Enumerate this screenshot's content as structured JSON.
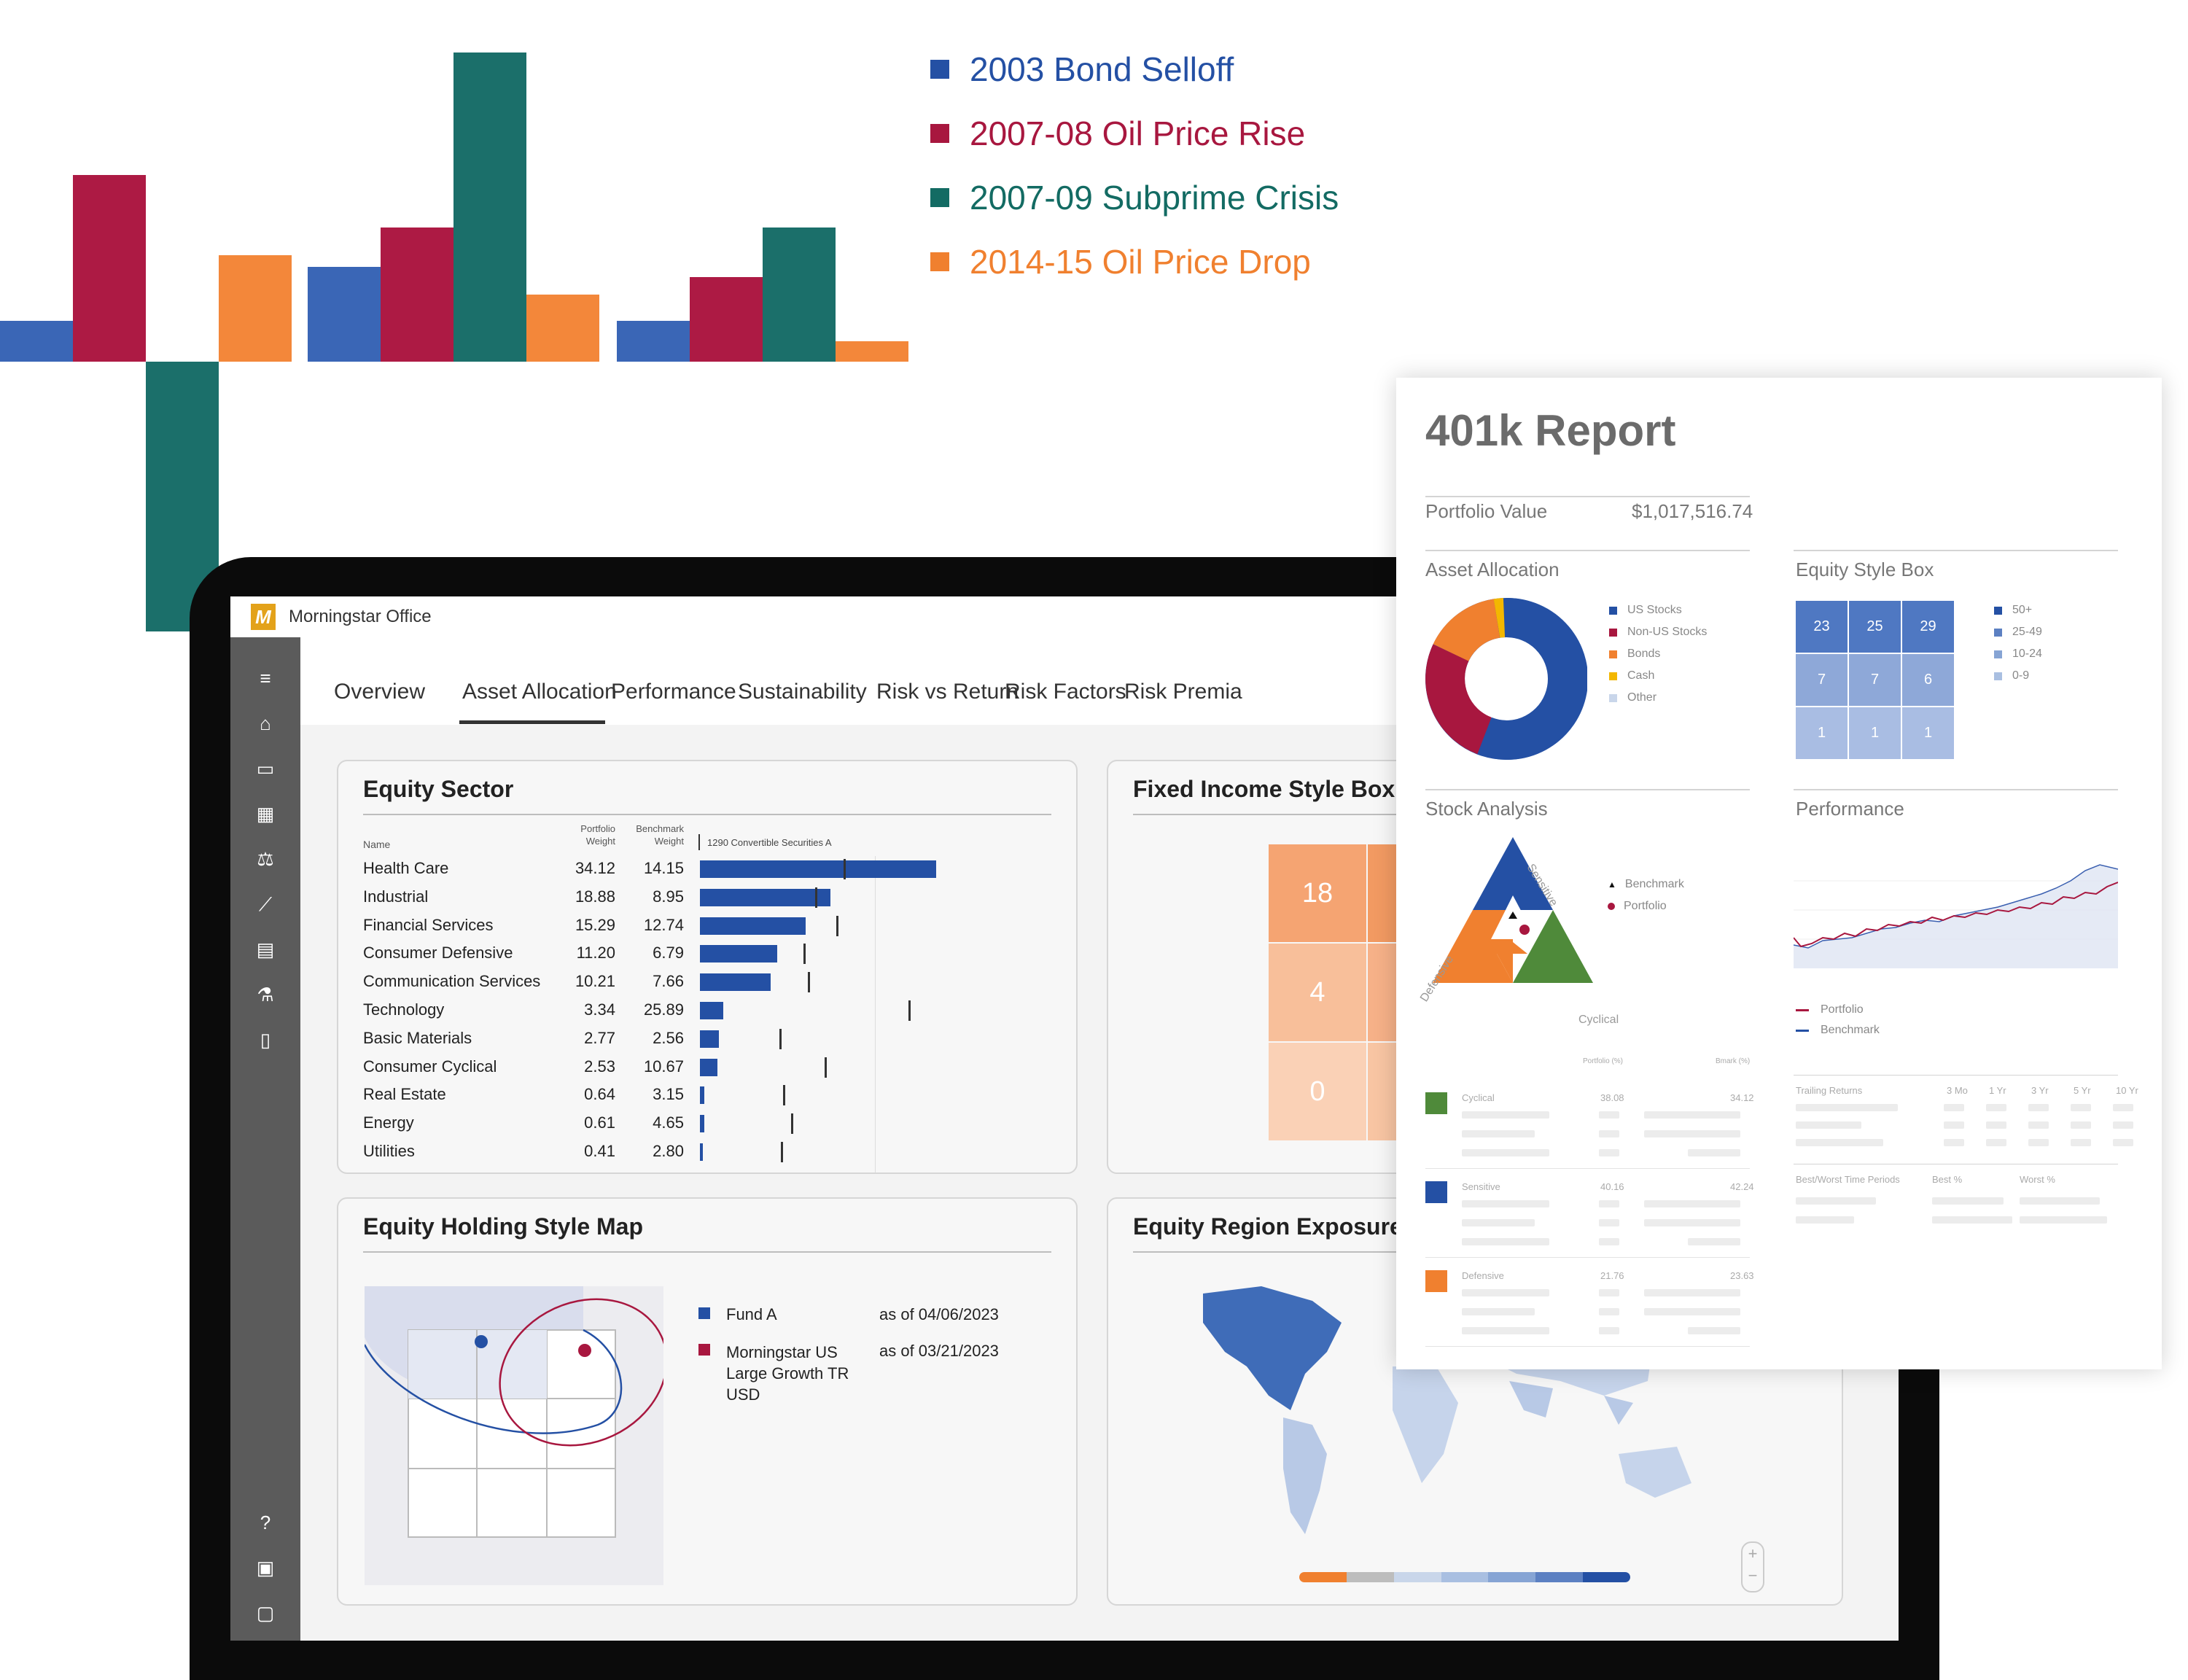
{
  "hero_legend": [
    {
      "label": "2003 Bond Selloff",
      "color": "#2450a4"
    },
    {
      "label": "2007-08 Oil Price Rise",
      "color": "#a8173f"
    },
    {
      "label": "2007-09 Subprime Crisis",
      "color": "#136b63"
    },
    {
      "label": "2014-15 Oil Price Drop",
      "color": "#f0802f"
    }
  ],
  "app": {
    "title": "Morningstar Office",
    "logo_text": "M",
    "tabs": [
      "Overview",
      "Asset Allocation",
      "Performance",
      "Sustainability",
      "Risk vs Return",
      "Risk Factors",
      "Risk Premia"
    ],
    "active_tab": "Asset Allocation",
    "sidebar_icons": [
      "menu-icon",
      "home-icon",
      "folder-icon",
      "grid-icon",
      "scale-icon",
      "line-chart-icon",
      "calendar-icon",
      "flask-icon",
      "document-icon",
      "help-icon",
      "chat-icon",
      "logout-icon"
    ]
  },
  "equity_sector": {
    "title": "Equity Sector",
    "col_name": "Name",
    "col_portfolio": [
      "Portfolio",
      "Weight"
    ],
    "col_benchmark": [
      "Benchmark",
      "Weight"
    ],
    "bar_header": "1290 Convertible Securities A",
    "rows": [
      {
        "name": "Health Care",
        "portfolio": "34.12",
        "benchmark": "14.15"
      },
      {
        "name": "Industrial",
        "portfolio": "18.88",
        "benchmark": "8.95"
      },
      {
        "name": "Financial Services",
        "portfolio": "15.29",
        "benchmark": "12.74"
      },
      {
        "name": "Consumer Defensive",
        "portfolio": "11.20",
        "benchmark": "6.79"
      },
      {
        "name": "Communication Services",
        "portfolio": "10.21",
        "benchmark": "7.66"
      },
      {
        "name": "Technology",
        "portfolio": "3.34",
        "benchmark": "25.89"
      },
      {
        "name": "Basic Materials",
        "portfolio": "2.77",
        "benchmark": "2.56"
      },
      {
        "name": "Consumer Cyclical",
        "portfolio": "2.53",
        "benchmark": "10.67"
      },
      {
        "name": "Real Estate",
        "portfolio": "0.64",
        "benchmark": "3.15"
      },
      {
        "name": "Energy",
        "portfolio": "0.61",
        "benchmark": "4.65"
      },
      {
        "name": "Utilities",
        "portfolio": "0.41",
        "benchmark": "2.80"
      }
    ]
  },
  "fixed_income": {
    "title": "Fixed Income Style Box",
    "cells": [
      "18",
      "4",
      "0"
    ]
  },
  "style_map": {
    "title": "Equity Holding Style Map",
    "legend": [
      {
        "label": "Fund A",
        "date": "as of 04/06/2023",
        "color": "#2450a4"
      },
      {
        "label": "Morningstar US Large Growth TR USD",
        "date": "as of 03/21/2023",
        "color": "#a8173f"
      }
    ]
  },
  "region": {
    "title": "Equity Region Exposure",
    "scale_colors": [
      "#f0802f",
      "#bdbdbd",
      "#c9d6ea",
      "#a9bfe1",
      "#86a4d4",
      "#5c80c2",
      "#2450a4"
    ]
  },
  "report": {
    "title": "401k Report",
    "portfolio_value_label": "Portfolio Value",
    "portfolio_value": "$1,017,516.74",
    "asset_allocation": {
      "title": "Asset Allocation",
      "legend": [
        {
          "label": "US Stocks",
          "color": "#2450a4"
        },
        {
          "label": "Non-US Stocks",
          "color": "#a8173f"
        },
        {
          "label": "Bonds",
          "color": "#f0802f"
        },
        {
          "label": "Cash",
          "color": "#f3b700"
        },
        {
          "label": "Other",
          "color": "#c9d6ea"
        }
      ]
    },
    "style_box": {
      "title": "Equity Style Box",
      "cells": [
        "23",
        "25",
        "29",
        "7",
        "7",
        "6",
        "1",
        "1",
        "1"
      ],
      "legend": [
        "50+",
        "25-49",
        "10-24",
        "0-9"
      ]
    },
    "stock_analysis": {
      "title": "Stock Analysis",
      "labels": {
        "sensitive": "Sensitive",
        "defensive": "Defensive",
        "cyclical": "Cyclical"
      },
      "legend": [
        "Benchmark",
        "Portfolio"
      ],
      "col_portfolio": "Portfolio (%)",
      "col_bmark": "Bmark (%)",
      "rows": [
        {
          "name": "Cyclical",
          "portfolio": "38.08",
          "bmark": "34.12"
        },
        {
          "name": "Sensitive",
          "portfolio": "40.16",
          "bmark": "42.24"
        },
        {
          "name": "Defensive",
          "portfolio": "21.76",
          "bmark": "23.63"
        }
      ]
    },
    "performance": {
      "title": "Performance",
      "legend": [
        "Portfolio",
        "Benchmark"
      ],
      "trailing_label": "Trailing Returns",
      "trailing_cols": [
        "3 Mo",
        "1 Yr",
        "3 Yr",
        "5 Yr",
        "10 Yr"
      ],
      "bestworst_label": "Best/Worst Time Periods",
      "bestworst_cols": [
        "Best %",
        "Worst %"
      ]
    }
  }
}
